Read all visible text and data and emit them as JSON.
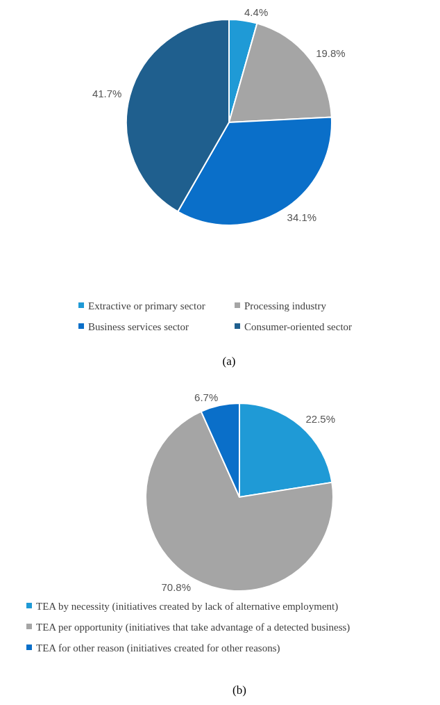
{
  "chart_data": [
    {
      "type": "pie",
      "categories": [
        "Extractive or primary sector",
        "Processing industry",
        "Business services sector",
        "Consumer-oriented sector"
      ],
      "values": [
        4.4,
        19.8,
        34.1,
        41.7
      ],
      "colors": [
        "#1f9ad6",
        "#a5a5a5",
        "#0a6fc9",
        "#1f5f8e"
      ],
      "value_labels": [
        "4.4%",
        "19.8%",
        "34.1%",
        "41.7%"
      ],
      "legend": "bottom",
      "annotations": [
        "(a)"
      ]
    },
    {
      "type": "pie",
      "categories": [
        "TEA by necessity (initiatives created by lack of alternative employment)",
        "TEA per opportunity (initiatives that take advantage of a detected business)",
        "TEA for other reason (initiatives created for other reasons)"
      ],
      "values": [
        22.5,
        70.8,
        6.7
      ],
      "colors": [
        "#1f9ad6",
        "#a5a5a5",
        "#0a6fc9"
      ],
      "value_labels": [
        "22.5%",
        "70.8%",
        "6.7%"
      ],
      "legend": "bottom",
      "annotations": [
        "(b)"
      ]
    }
  ]
}
